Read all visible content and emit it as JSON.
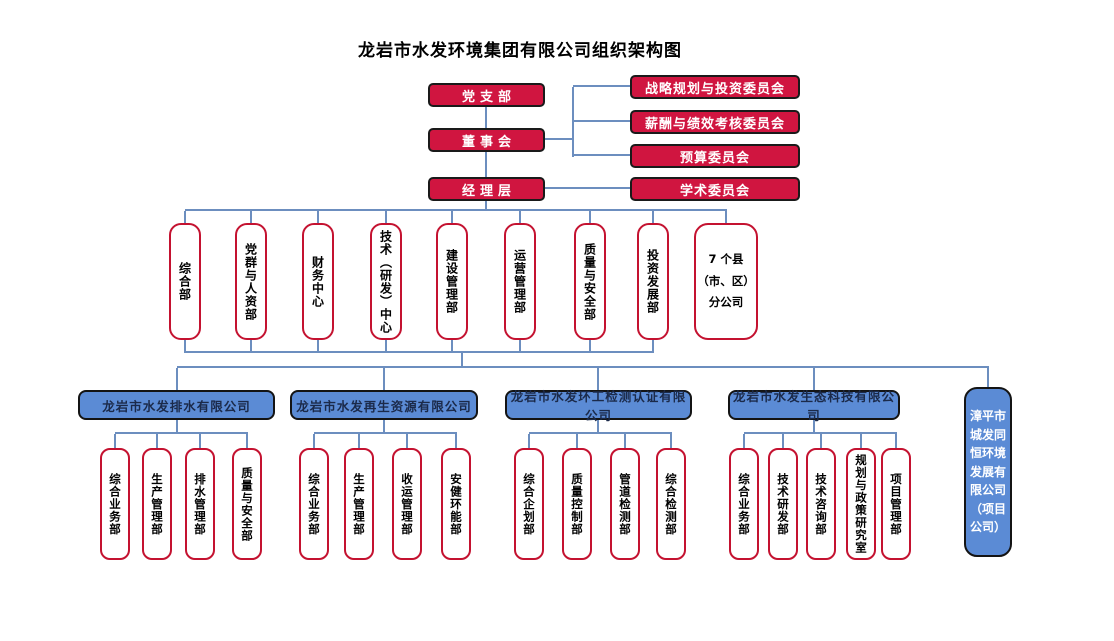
{
  "title": "龙岩市水发环境集团有限公司组织架构图",
  "colors": {
    "node_red": "#D01540",
    "red_border": "#C41230",
    "node_blue": "#5B8BD5",
    "connector_blue": "#6C8EBF"
  },
  "governance": {
    "party_branch": "党支部",
    "board": "董事会",
    "management": "经理层"
  },
  "committees": [
    "战略规划与投资委员会",
    "薪酬与绩效考核委员会",
    "预算委员会",
    "学术委员会"
  ],
  "departments": [
    "综合部",
    "党群与人资部",
    "财务中心",
    "技术（研发）中心",
    "建设管理部",
    "运营管理部",
    "质量与安全部",
    "投资发展部"
  ],
  "branch_box": {
    "lines": [
      "7 个县",
      "（市、区）",
      "分公司"
    ]
  },
  "subsidiaries": [
    {
      "name": "龙岩市水发排水有限公司",
      "departments": [
        "综合业务部",
        "生产管理部",
        "排水管理部",
        "质量与安全部"
      ]
    },
    {
      "name": "龙岩市水发再生资源有限公司",
      "departments": [
        "综合业务部",
        "生产管理部",
        "收运管理部",
        "安健环能部"
      ]
    },
    {
      "name": "龙岩市水发环工检测认证有限公司",
      "departments": [
        "综合企划部",
        "质量控制部",
        "管道检测部",
        "综合检测部"
      ]
    },
    {
      "name": "龙岩市水发生态科技有限公司",
      "departments": [
        "综合业务部",
        "技术研发部",
        "技术咨询部",
        "规划与政策研究室",
        "项目管理部"
      ]
    },
    {
      "name": "漳平市城发同恒环境发展有限公司（项目公司）",
      "departments": []
    }
  ]
}
